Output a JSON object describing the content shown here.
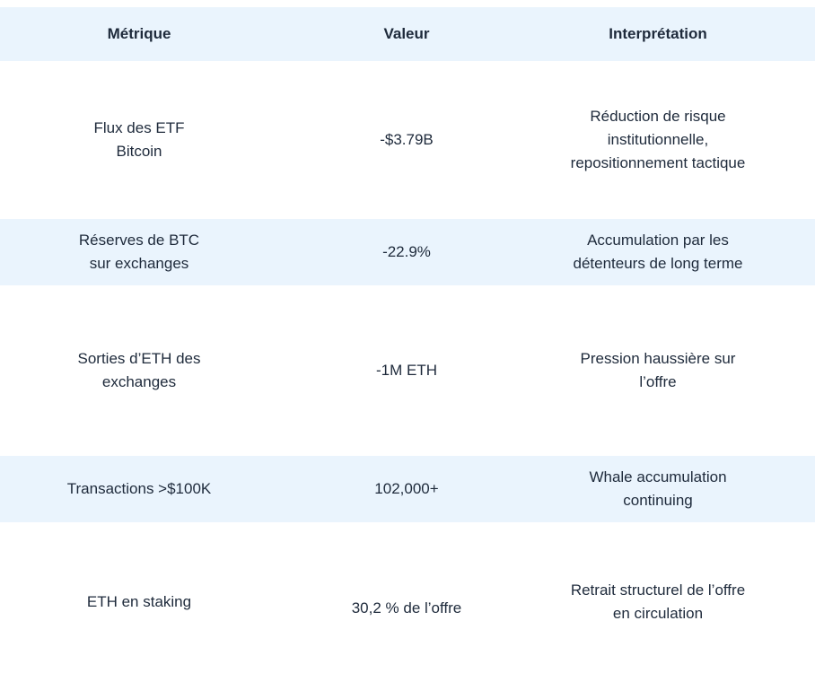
{
  "header": {
    "metric": "Métrique",
    "value": "Valeur",
    "interpretation": "Interprétation"
  },
  "rows": [
    {
      "metric": [
        "Flux des ETF",
        "Bitcoin"
      ],
      "value": "-$3.79B",
      "interpretation": [
        "Réduction de risque",
        "institutionnelle,",
        "repositionnement tactique"
      ]
    },
    {
      "metric": [
        "Réserves de BTC",
        "sur exchanges"
      ],
      "value": "-22.9%",
      "interpretation": [
        "Accumulation par les",
        "détenteurs de long terme"
      ]
    },
    {
      "metric": [
        "Sorties d’ETH des",
        "exchanges"
      ],
      "value": "-1M ETH",
      "interpretation": [
        "Pression haussière sur",
        "l’offre"
      ]
    },
    {
      "metric": [
        "Transactions >$100K"
      ],
      "value": "102,000+",
      "interpretation": [
        "Whale accumulation",
        "continuing"
      ]
    },
    {
      "metric": [
        "ETH en staking"
      ],
      "value": "30,2 % de l’offre",
      "interpretation": [
        "Retrait structurel de l’offre",
        "en circulation"
      ]
    }
  ],
  "colors": {
    "header_bg": "#eaf4fd",
    "band_bg": "#eaf4fd",
    "text": "#1e2a3b"
  }
}
